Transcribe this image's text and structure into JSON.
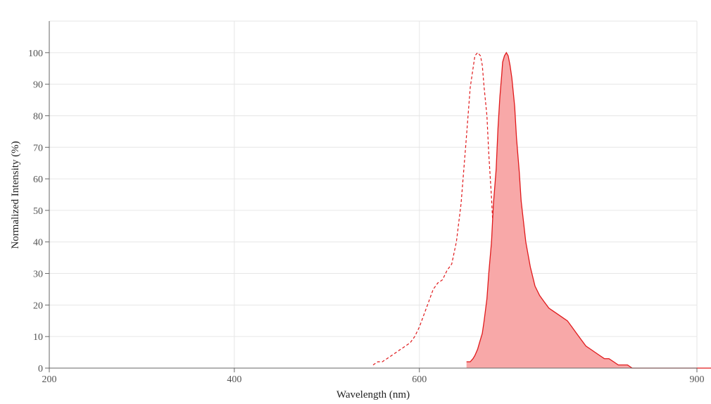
{
  "chart_data": {
    "type": "area",
    "title": "",
    "xlabel": "Wavelength (nm)",
    "ylabel": "Normalized Intensity (%)",
    "xlim": [
      200,
      900
    ],
    "ylim": [
      0,
      110
    ],
    "x_ticks": [
      200,
      400,
      600,
      900
    ],
    "y_ticks": [
      0,
      10,
      20,
      30,
      40,
      50,
      60,
      70,
      80,
      90,
      100
    ],
    "grid": true,
    "colors": {
      "line": "#e0191b",
      "fill": "#f8a8a8",
      "grid": "#e6e6e6",
      "axis": "#666666"
    },
    "series": [
      {
        "style": "dashed",
        "x": [
          550,
          555,
          560,
          565,
          570,
          575,
          580,
          585,
          590,
          595,
          600,
          605,
          610,
          615,
          620,
          625,
          630,
          635,
          640,
          645,
          650,
          655,
          660,
          663,
          666,
          668,
          670,
          673,
          675,
          678,
          680,
          683,
          685,
          688,
          690,
          693,
          695,
          700,
          705,
          710,
          715,
          720
        ],
        "y": [
          1,
          2,
          2,
          3,
          4,
          5,
          6,
          7,
          8,
          10,
          13,
          17,
          21,
          25,
          27,
          28,
          31,
          33,
          40,
          52,
          70,
          89,
          99,
          100,
          99,
          96,
          89,
          80,
          68,
          54,
          42,
          30,
          20,
          13,
          9,
          6,
          4,
          3,
          2,
          1,
          1,
          1
        ]
      },
      {
        "style": "solid-filled",
        "x": [
          651,
          655,
          658,
          660,
          663,
          665,
          668,
          670,
          673,
          675,
          678,
          680,
          683,
          685,
          687,
          689,
          690,
          692,
          694,
          696,
          698,
          700,
          703,
          705,
          708,
          710,
          715,
          720,
          725,
          730,
          735,
          740,
          745,
          750,
          755,
          760,
          765,
          770,
          775,
          780,
          785,
          790,
          795,
          800,
          805,
          810,
          815,
          820,
          825,
          830,
          835,
          840,
          845,
          850,
          855,
          860,
          865,
          870,
          875,
          880,
          885,
          890,
          895,
          900,
          905,
          910,
          915,
          920
        ],
        "y": [
          2,
          2,
          3,
          4,
          6,
          8,
          11,
          15,
          22,
          30,
          40,
          52,
          63,
          76,
          86,
          93,
          97,
          99,
          100,
          99,
          96,
          92,
          83,
          73,
          62,
          53,
          40,
          32,
          26,
          23,
          21,
          19,
          18,
          17,
          16,
          15,
          13,
          11,
          9,
          7,
          6,
          5,
          4,
          3,
          3,
          2,
          1,
          1,
          1,
          0,
          0,
          0,
          0,
          0,
          0,
          0,
          0,
          0,
          0,
          0,
          0,
          0,
          0,
          0,
          0,
          0,
          0,
          0
        ]
      }
    ]
  }
}
